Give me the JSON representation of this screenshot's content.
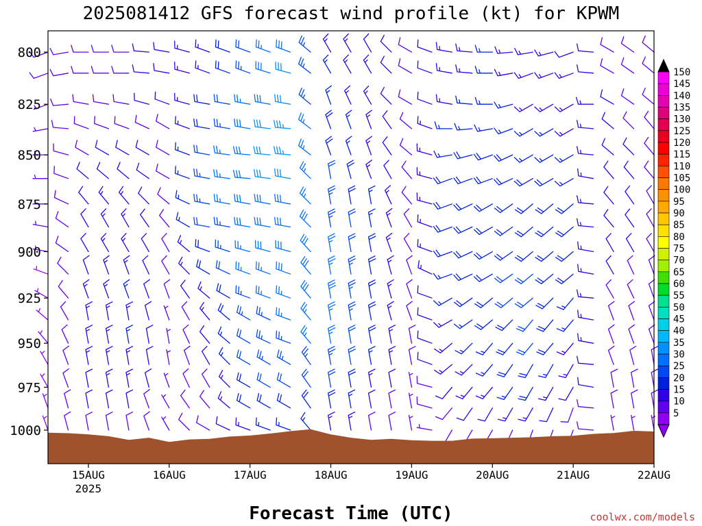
{
  "chart_data": {
    "type": "wind_barb_profile",
    "title": "2025081412 GFS forecast wind profile (kt) for KPWM",
    "xlabel": "Forecast Time (UTC)",
    "credit": "coolwx.com/models",
    "x_ticks": [
      {
        "label": "15AUG",
        "sub": "2025",
        "day": 15
      },
      {
        "label": "16AUG",
        "sub": "",
        "day": 16
      },
      {
        "label": "17AUG",
        "sub": "",
        "day": 17
      },
      {
        "label": "18AUG",
        "sub": "",
        "day": 18
      },
      {
        "label": "19AUG",
        "sub": "",
        "day": 19
      },
      {
        "label": "20AUG",
        "sub": "",
        "day": 20
      },
      {
        "label": "21AUG",
        "sub": "",
        "day": 21
      },
      {
        "label": "22AUG",
        "sub": "",
        "day": 22
      }
    ],
    "x_range_days": [
      14.5,
      22.0
    ],
    "y_axis": {
      "unit": "hPa",
      "ticks": [
        800,
        825,
        850,
        875,
        900,
        925,
        950,
        975,
        1000
      ],
      "range": [
        790,
        1020
      ],
      "scale": "log"
    },
    "colorbar": {
      "values": [
        150,
        145,
        140,
        135,
        130,
        125,
        120,
        115,
        110,
        105,
        100,
        95,
        90,
        85,
        80,
        75,
        70,
        65,
        60,
        55,
        50,
        45,
        40,
        35,
        30,
        25,
        20,
        15,
        10,
        5
      ],
      "colors": [
        "#ff00ff",
        "#f000d8",
        "#e800b0",
        "#e0007c",
        "#e4004e",
        "#ea0020",
        "#ff0000",
        "#ff2400",
        "#ff5000",
        "#ff7800",
        "#ff9000",
        "#ffa800",
        "#ffc800",
        "#ffe000",
        "#ffff00",
        "#d0f000",
        "#a0f000",
        "#40e000",
        "#00dc28",
        "#00e090",
        "#00e0c0",
        "#00d0e8",
        "#00b8ff",
        "#0090ff",
        "#0070ff",
        "#0048f0",
        "#0020e0",
        "#3000e8",
        "#6000f0",
        "#9000f8"
      ]
    },
    "terrain_color": "#a0522d",
    "surface_pressure_hpa": [
      {
        "day": 14.5,
        "p": 1001.5
      },
      {
        "day": 14.75,
        "p": 1001.8
      },
      {
        "day": 15.0,
        "p": 1002.5
      },
      {
        "day": 15.25,
        "p": 1003.6
      },
      {
        "day": 15.5,
        "p": 1005.8
      },
      {
        "day": 15.75,
        "p": 1004.5
      },
      {
        "day": 16.0,
        "p": 1007.0
      },
      {
        "day": 16.25,
        "p": 1005.5
      },
      {
        "day": 16.5,
        "p": 1005.2
      },
      {
        "day": 16.75,
        "p": 1003.8
      },
      {
        "day": 17.0,
        "p": 1003.2
      },
      {
        "day": 17.25,
        "p": 1002.0
      },
      {
        "day": 17.5,
        "p": 1000.6
      },
      {
        "day": 17.75,
        "p": 999.5
      },
      {
        "day": 18.0,
        "p": 1002.5
      },
      {
        "day": 18.25,
        "p": 1004.5
      },
      {
        "day": 18.5,
        "p": 1005.8
      },
      {
        "day": 18.75,
        "p": 1005.2
      },
      {
        "day": 19.0,
        "p": 1006.0
      },
      {
        "day": 19.25,
        "p": 1006.3
      },
      {
        "day": 19.5,
        "p": 1006.3
      },
      {
        "day": 19.75,
        "p": 1005.0
      },
      {
        "day": 20.0,
        "p": 1004.8
      },
      {
        "day": 20.25,
        "p": 1004.5
      },
      {
        "day": 20.5,
        "p": 1004.2
      },
      {
        "day": 20.75,
        "p": 1003.6
      },
      {
        "day": 21.0,
        "p": 1003.3
      },
      {
        "day": 21.25,
        "p": 1002.2
      },
      {
        "day": 21.5,
        "p": 1001.7
      },
      {
        "day": 21.75,
        "p": 1000.4
      },
      {
        "day": 22.0,
        "p": 1000.8
      }
    ],
    "wind_levels_hpa": [
      800,
      810,
      825,
      837,
      850,
      862,
      875,
      887,
      900,
      912,
      925,
      937,
      950,
      962,
      975,
      987,
      1000
    ],
    "wind_time_days": [
      14.5,
      14.75,
      15.0,
      15.25,
      15.5,
      15.75,
      16.0,
      16.25,
      16.5,
      16.75,
      17.0,
      17.25,
      17.5,
      17.75,
      18.0,
      18.25,
      18.5,
      18.75,
      19.0,
      19.25,
      19.5,
      19.75,
      20.0,
      20.25,
      20.5,
      20.75,
      21.0,
      21.25,
      21.5,
      21.75,
      22.0
    ],
    "wind_samples": [
      {
        "day": 14.5,
        "dir_deg": [
          250,
          250,
          250,
          260,
          270,
          270,
          270,
          280,
          280,
          290,
          300,
          310,
          320,
          330,
          330,
          340,
          340
        ],
        "speed_kt": [
          8,
          8,
          7,
          7,
          7,
          6,
          6,
          6,
          6,
          5,
          5,
          5,
          5,
          5,
          5,
          5,
          5
        ]
      },
      {
        "day": 15.0,
        "dir_deg": [
          270,
          270,
          280,
          290,
          300,
          310,
          320,
          330,
          330,
          340,
          340,
          350,
          350,
          350,
          350,
          350,
          350
        ],
        "speed_kt": [
          9,
          9,
          9,
          8,
          10,
          12,
          12,
          12,
          11,
          12,
          13,
          14,
          14,
          13,
          12,
          11,
          10
        ]
      },
      {
        "day": 15.5,
        "dir_deg": [
          270,
          270,
          280,
          290,
          300,
          310,
          320,
          330,
          330,
          340,
          340,
          350,
          350,
          350,
          350,
          350,
          350
        ],
        "speed_kt": [
          10,
          10,
          10,
          10,
          11,
          12,
          14,
          14,
          14,
          15,
          16,
          15,
          16,
          15,
          14,
          12,
          10
        ]
      },
      {
        "day": 16.0,
        "dir_deg": [
          280,
          280,
          290,
          300,
          300,
          300,
          310,
          320,
          330,
          330,
          340,
          340,
          350,
          350,
          340,
          330,
          330
        ],
        "speed_kt": [
          11,
          11,
          11,
          10,
          10,
          9,
          9,
          9,
          8,
          8,
          8,
          7,
          7,
          7,
          7,
          7,
          7
        ]
      },
      {
        "day": 16.5,
        "dir_deg": [
          290,
          290,
          280,
          280,
          280,
          280,
          280,
          280,
          290,
          300,
          310,
          320,
          320,
          330,
          330,
          320,
          300
        ],
        "speed_kt": [
          14,
          15,
          18,
          20,
          22,
          24,
          24,
          22,
          20,
          18,
          15,
          13,
          12,
          11,
          10,
          10,
          9
        ]
      },
      {
        "day": 17.0,
        "dir_deg": [
          290,
          290,
          280,
          280,
          275,
          275,
          280,
          280,
          285,
          290,
          290,
          300,
          300,
          300,
          300,
          300,
          290
        ],
        "speed_kt": [
          22,
          24,
          26,
          28,
          30,
          30,
          30,
          28,
          27,
          26,
          25,
          24,
          22,
          22,
          20,
          18,
          15
        ]
      },
      {
        "day": 17.5,
        "dir_deg": [
          290,
          285,
          280,
          275,
          275,
          280,
          280,
          280,
          285,
          290,
          290,
          290,
          290,
          300,
          300,
          300,
          290
        ],
        "speed_kt": [
          30,
          32,
          32,
          33,
          33,
          32,
          30,
          30,
          29,
          28,
          27,
          26,
          25,
          24,
          22,
          20,
          17
        ]
      },
      {
        "day": 18.0,
        "dir_deg": [
          330,
          330,
          340,
          340,
          340,
          350,
          350,
          350,
          350,
          350,
          350,
          350,
          350,
          350,
          350,
          350,
          350
        ],
        "speed_kt": [
          15,
          16,
          17,
          18,
          20,
          22,
          24,
          25,
          26,
          27,
          28,
          27,
          26,
          25,
          22,
          20,
          15
        ]
      },
      {
        "day": 18.5,
        "dir_deg": [
          330,
          330,
          330,
          340,
          340,
          340,
          350,
          350,
          350,
          350,
          350,
          350,
          350,
          350,
          350,
          350,
          350
        ],
        "speed_kt": [
          12,
          13,
          13,
          14,
          14,
          15,
          16,
          17,
          18,
          20,
          20,
          19,
          18,
          17,
          15,
          12,
          10
        ]
      },
      {
        "day": 19.0,
        "dir_deg": [
          300,
          300,
          300,
          310,
          310,
          320,
          320,
          330,
          330,
          340,
          340,
          340,
          350,
          350,
          350,
          350,
          350
        ],
        "speed_kt": [
          9,
          9,
          9,
          9,
          9,
          9,
          9,
          9,
          9,
          8,
          8,
          8,
          8,
          8,
          7,
          7,
          6
        ]
      },
      {
        "day": 19.5,
        "dir_deg": [
          280,
          280,
          280,
          270,
          260,
          250,
          250,
          250,
          250,
          250,
          240,
          240,
          230,
          230,
          220,
          220,
          210
        ],
        "speed_kt": [
          14,
          14,
          15,
          16,
          17,
          18,
          18,
          18,
          18,
          17,
          16,
          15,
          15,
          14,
          12,
          10,
          8
        ]
      },
      {
        "day": 20.0,
        "dir_deg": [
          270,
          270,
          270,
          260,
          250,
          250,
          240,
          240,
          240,
          240,
          230,
          230,
          220,
          220,
          220,
          210,
          210
        ],
        "speed_kt": [
          16,
          16,
          17,
          17,
          18,
          18,
          19,
          20,
          20,
          20,
          19,
          18,
          17,
          16,
          14,
          12,
          9
        ]
      },
      {
        "day": 20.5,
        "dir_deg": [
          260,
          250,
          240,
          240,
          240,
          240,
          230,
          230,
          230,
          230,
          230,
          220,
          220,
          210,
          210,
          210,
          200
        ],
        "speed_kt": [
          13,
          14,
          15,
          16,
          17,
          18,
          18,
          19,
          20,
          21,
          22,
          22,
          21,
          20,
          18,
          14,
          10
        ]
      },
      {
        "day": 21.0,
        "dir_deg": [
          250,
          250,
          240,
          240,
          240,
          240,
          230,
          230,
          230,
          230,
          220,
          220,
          220,
          210,
          210,
          200,
          200
        ],
        "speed_kt": [
          12,
          13,
          14,
          15,
          16,
          17,
          18,
          18,
          18,
          18,
          17,
          16,
          15,
          14,
          12,
          10,
          8
        ]
      },
      {
        "day": 21.5,
        "dir_deg": [
          300,
          300,
          300,
          310,
          310,
          320,
          320,
          320,
          330,
          330,
          330,
          340,
          340,
          340,
          350,
          350,
          350
        ],
        "speed_kt": [
          10,
          10,
          11,
          11,
          12,
          12,
          12,
          12,
          11,
          11,
          10,
          10,
          10,
          9,
          9,
          8,
          7
        ]
      },
      {
        "day": 22.0,
        "dir_deg": [
          310,
          310,
          310,
          320,
          320,
          320,
          330,
          330,
          330,
          340,
          340,
          340,
          340,
          350,
          350,
          350,
          350
        ],
        "speed_kt": [
          9,
          9,
          9,
          9,
          10,
          10,
          10,
          10,
          10,
          9,
          9,
          9,
          9,
          8,
          8,
          8,
          7
        ]
      }
    ]
  }
}
